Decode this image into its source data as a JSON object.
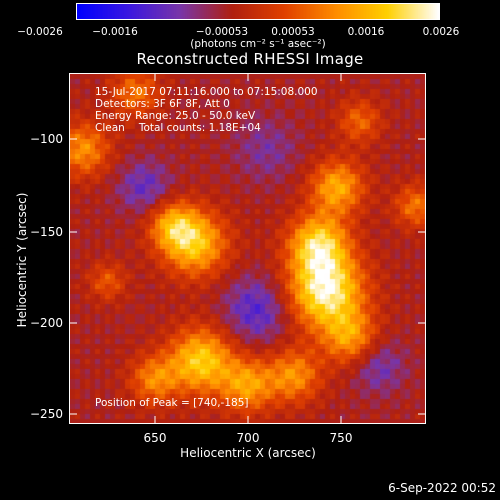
{
  "chart_data": {
    "type": "heatmap",
    "title": "Reconstructed RHESSI Image",
    "xlabel": "Heliocentric X (arcsec)",
    "ylabel": "Heliocentric Y (arcsec)",
    "xlim": [
      605,
      795
    ],
    "ylim": [
      -255,
      -70
    ],
    "xticks": [
      650,
      700,
      750
    ],
    "yticks": [
      -100,
      -150,
      -200,
      -250
    ],
    "colorbar": {
      "range": [
        -0.0026,
        0.0026
      ],
      "tick_labels": [
        "-0.0026",
        "-0.0016",
        "-0.00053",
        "0.00053",
        "0.0016",
        "0.0026"
      ],
      "tick_values": [
        -0.0026,
        -0.0016,
        -0.00053,
        0.00053,
        0.0016,
        0.0026
      ],
      "units_label": "(photons cm⁻² s⁻¹ asec⁻²)",
      "colors": [
        "#0000ff",
        "#3c18e0",
        "#7a36a8",
        "#b02010",
        "#e04000",
        "#ff8c00",
        "#ffd000",
        "#ffffff"
      ]
    },
    "annotations": {
      "time_range": "15-Jul-2017 07:11:16.000 to 07:15:08.000",
      "detectors": "Detectors: 3F 6F 8F, Att 0",
      "energy_range": "Energy Range: 25.0 - 50.0 keV",
      "algorithm": "Clean",
      "total_counts": "Total counts: 1.18E+04",
      "peak": "Position of Peak = [740,-185]"
    },
    "sources": [
      {
        "x": 742,
        "y": -185,
        "sigma": 14,
        "amp": 1.0
      },
      {
        "x": 738,
        "y": -160,
        "sigma": 11,
        "amp": 0.8
      },
      {
        "x": 748,
        "y": -130,
        "sigma": 10,
        "amp": 0.65
      },
      {
        "x": 755,
        "y": -210,
        "sigma": 10,
        "amp": 0.55
      },
      {
        "x": 672,
        "y": -160,
        "sigma": 12,
        "amp": 0.75
      },
      {
        "x": 660,
        "y": -150,
        "sigma": 9,
        "amp": 0.55
      },
      {
        "x": 675,
        "y": -222,
        "sigma": 12,
        "amp": 0.8
      },
      {
        "x": 700,
        "y": -235,
        "sigma": 10,
        "amp": 0.6
      },
      {
        "x": 725,
        "y": -230,
        "sigma": 10,
        "amp": 0.55
      },
      {
        "x": 650,
        "y": -232,
        "sigma": 9,
        "amp": 0.5
      },
      {
        "x": 612,
        "y": -110,
        "sigma": 10,
        "amp": 0.55
      },
      {
        "x": 640,
        "y": -80,
        "sigma": 9,
        "amp": 0.45
      },
      {
        "x": 760,
        "y": -95,
        "sigma": 8,
        "amp": 0.4
      },
      {
        "x": 790,
        "y": -140,
        "sigma": 8,
        "amp": 0.45
      },
      {
        "x": 625,
        "y": -180,
        "sigma": 7,
        "amp": 0.35
      }
    ],
    "negative_sources": [
      {
        "x": 705,
        "y": -195,
        "sigma": 12,
        "amp": 0.55
      },
      {
        "x": 645,
        "y": -130,
        "sigma": 10,
        "amp": 0.45
      },
      {
        "x": 770,
        "y": -225,
        "sigma": 10,
        "amp": 0.4
      },
      {
        "x": 710,
        "y": -110,
        "sigma": 12,
        "amp": 0.3
      }
    ]
  },
  "footer": {
    "date": "6-Sep-2022 00:52"
  }
}
